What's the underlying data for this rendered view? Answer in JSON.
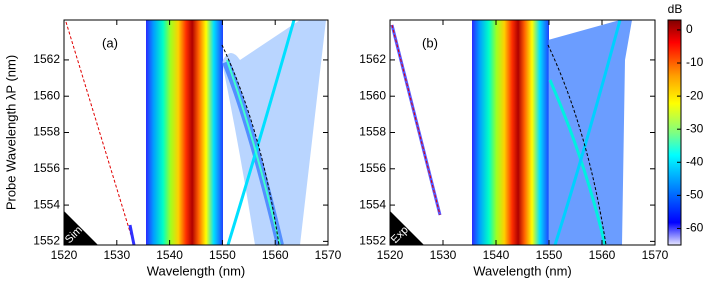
{
  "chart_data": [
    {
      "type": "heatmap",
      "panel_label": "(a)",
      "corner_label": "Sim.",
      "x_label": "Wavelength (nm)",
      "y_label": "Probe Wavelength λP (nm)",
      "xlim": [
        1520,
        1570
      ],
      "ylim": [
        1551.8,
        1564.2
      ],
      "xticks": [
        1520,
        1530,
        1540,
        1550,
        1560,
        1570
      ],
      "yticks": [
        1552,
        1554,
        1556,
        1558,
        1560,
        1562
      ]
    },
    {
      "type": "heatmap",
      "panel_label": "(b)",
      "corner_label": "Exp.",
      "x_label": "Wavelength (nm)",
      "xlim": [
        1520,
        1570
      ],
      "ylim": [
        1551.8,
        1564.2
      ],
      "xticks": [
        1520,
        1530,
        1540,
        1550,
        1560,
        1570
      ],
      "yticks": [
        1552,
        1554,
        1556,
        1558,
        1560,
        1562
      ],
      "colorbar": {
        "label": "dB",
        "lim": [
          -65,
          3
        ],
        "ticks": [
          0,
          -10,
          -20,
          -30,
          -40,
          -50,
          -60
        ]
      }
    }
  ]
}
